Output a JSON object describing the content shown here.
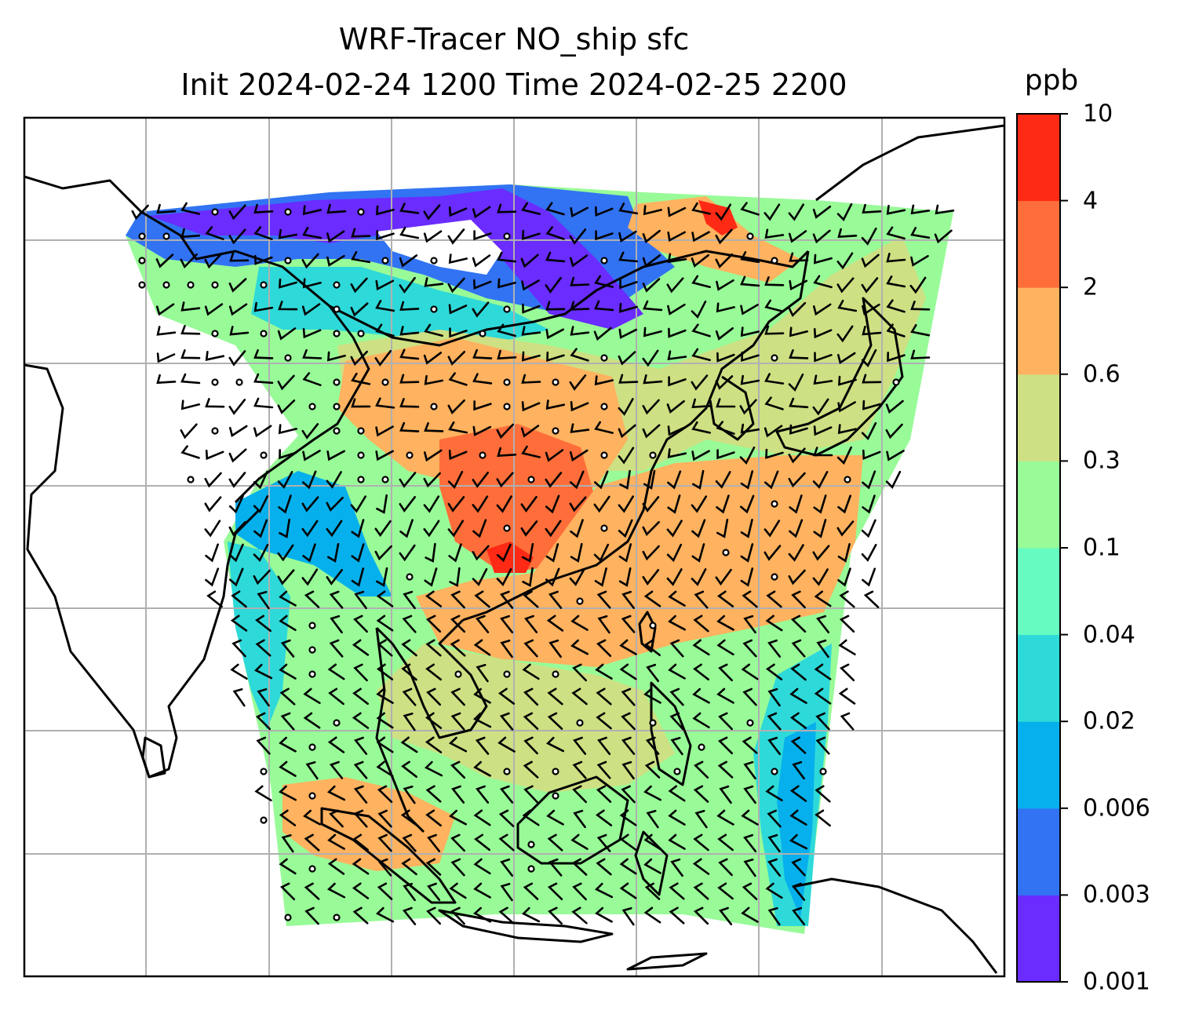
{
  "title": {
    "line1": "WRF-Tracer NO_ship sfc",
    "line2": "Init 2024-02-24 1200 Time 2024-02-25 2200"
  },
  "colorbar": {
    "unit": "ppb",
    "labels": [
      "0.001",
      "0.003",
      "0.006",
      "0.02",
      "0.04",
      "0.1",
      "0.3",
      "0.6",
      "2",
      "4",
      "10"
    ],
    "colors": [
      "#6a2cff",
      "#3273f4",
      "#06b0ec",
      "#2ed9d9",
      "#66fbc1",
      "#98fb98",
      "#cde083",
      "#ffb25f",
      "#ff6e3a",
      "#ff2a15"
    ]
  },
  "map": {
    "gridlines": true,
    "overlay": "wind barbs and calm-wind circles",
    "coastline_color": "#000000",
    "grid_color": "#b0b0b0"
  }
}
